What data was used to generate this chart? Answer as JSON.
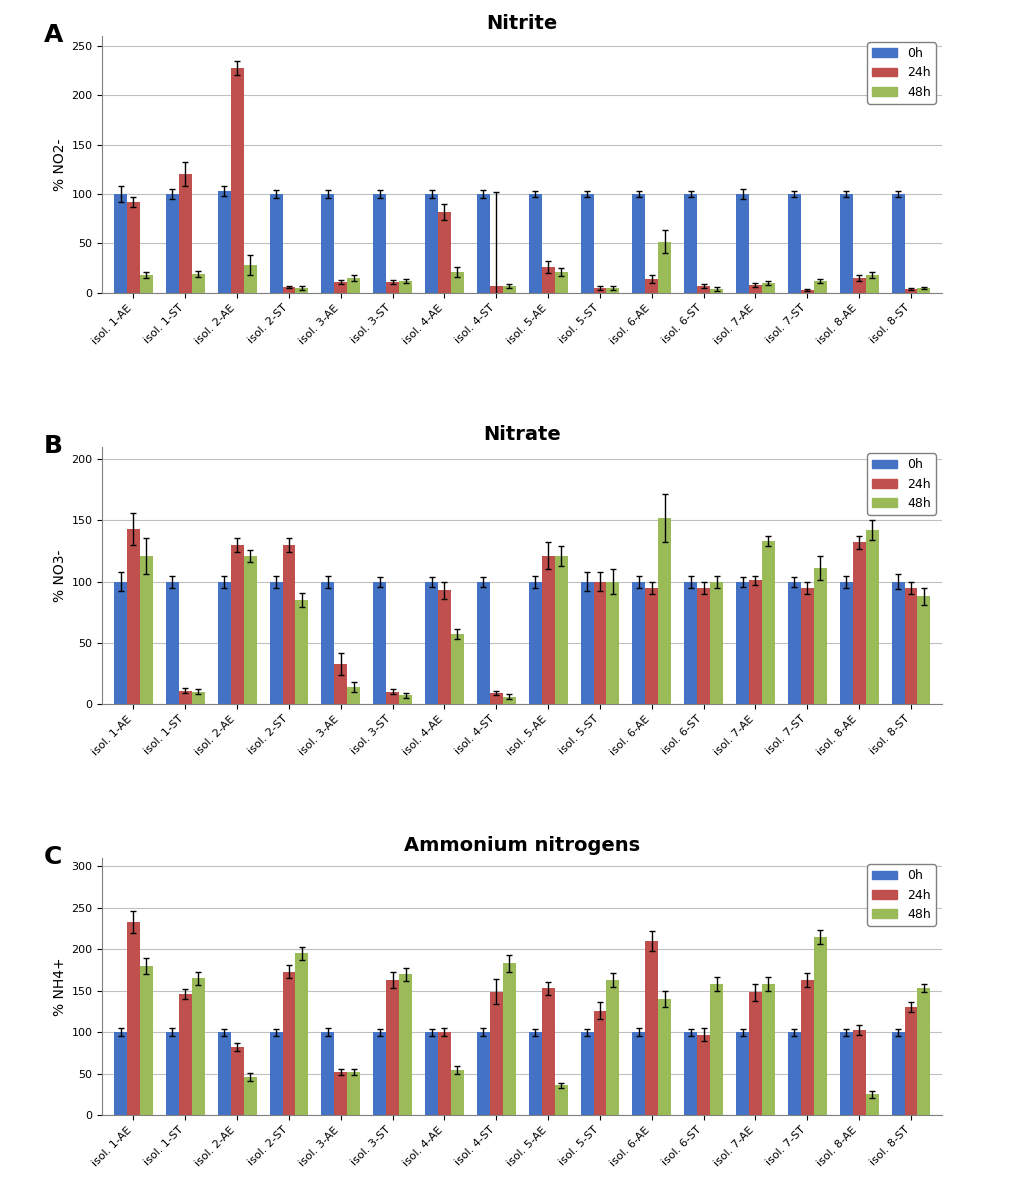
{
  "categories": [
    "isol. 1-AE",
    "isol. 1-ST",
    "isol. 2-AE",
    "isol. 2-ST",
    "isol. 3-AE",
    "isol. 3-ST",
    "isol. 4-AE",
    "isol. 4-ST",
    "isol. 5-AE",
    "isol. 5-ST",
    "isol. 6-AE",
    "isol. 6-ST",
    "isol. 7-AE",
    "isol. 7-ST",
    "isol. 8-AE",
    "isol. 8-ST"
  ],
  "colors": {
    "0h": "#4472C4",
    "24h": "#C0504D",
    "48h": "#9BBB59"
  },
  "panel_A": {
    "title": "Nitrite",
    "ylabel": "% NO2-",
    "ylim": [
      0,
      260
    ],
    "yticks": [
      0,
      50,
      100,
      150,
      200,
      250
    ],
    "values_0h": [
      100,
      100,
      103,
      100,
      100,
      100,
      100,
      100,
      100,
      100,
      100,
      100,
      100,
      100,
      100,
      100
    ],
    "values_24h": [
      92,
      120,
      228,
      6,
      11,
      11,
      82,
      7,
      26,
      5,
      14,
      7,
      8,
      3,
      15,
      4
    ],
    "values_48h": [
      18,
      19,
      28,
      5,
      15,
      12,
      21,
      7,
      21,
      5,
      52,
      4,
      10,
      12,
      18,
      5
    ],
    "err_0h": [
      8,
      5,
      5,
      4,
      4,
      4,
      4,
      4,
      3,
      3,
      3,
      3,
      5,
      3,
      3,
      3
    ],
    "err_24h": [
      5,
      12,
      7,
      1,
      2,
      2,
      8,
      95,
      6,
      2,
      4,
      2,
      2,
      1,
      3,
      1
    ],
    "err_48h": [
      3,
      3,
      10,
      2,
      3,
      2,
      5,
      2,
      4,
      2,
      12,
      2,
      2,
      2,
      3,
      1
    ]
  },
  "panel_B": {
    "title": "Nitrate",
    "ylabel": "% NO3-",
    "ylim": [
      0,
      210
    ],
    "yticks": [
      0,
      50,
      100,
      150,
      200
    ],
    "values_0h": [
      100,
      100,
      100,
      100,
      100,
      100,
      100,
      100,
      100,
      100,
      100,
      100,
      100,
      100,
      100,
      100
    ],
    "values_24h": [
      143,
      11,
      130,
      130,
      33,
      10,
      93,
      9,
      121,
      100,
      95,
      95,
      101,
      95,
      132,
      95
    ],
    "values_48h": [
      121,
      10,
      121,
      85,
      14,
      7,
      57,
      6,
      121,
      100,
      152,
      100,
      133,
      111,
      142,
      88
    ],
    "err_0h": [
      8,
      5,
      5,
      5,
      5,
      4,
      4,
      4,
      5,
      8,
      5,
      5,
      4,
      4,
      5,
      6
    ],
    "err_24h": [
      13,
      2,
      6,
      6,
      9,
      2,
      7,
      2,
      11,
      8,
      5,
      5,
      4,
      5,
      5,
      5
    ],
    "err_48h": [
      15,
      2,
      5,
      6,
      4,
      2,
      4,
      2,
      8,
      10,
      20,
      5,
      4,
      10,
      8,
      7
    ]
  },
  "panel_C": {
    "title": "Ammonium nitrogens",
    "ylabel": "% NH4+",
    "ylim": [
      0,
      310
    ],
    "yticks": [
      0,
      50,
      100,
      150,
      200,
      250,
      300
    ],
    "values_0h": [
      100,
      100,
      100,
      100,
      100,
      100,
      100,
      100,
      100,
      100,
      100,
      100,
      100,
      100,
      100,
      100
    ],
    "values_24h": [
      233,
      146,
      82,
      173,
      52,
      163,
      100,
      149,
      153,
      126,
      210,
      97,
      148,
      163,
      103,
      130
    ],
    "values_48h": [
      180,
      165,
      46,
      195,
      52,
      170,
      54,
      183,
      36,
      163,
      140,
      158,
      158,
      215,
      25,
      153
    ],
    "err_0h": [
      5,
      5,
      4,
      4,
      5,
      4,
      4,
      5,
      4,
      4,
      5,
      4,
      4,
      4,
      4,
      4
    ],
    "err_24h": [
      13,
      6,
      5,
      8,
      4,
      10,
      5,
      15,
      8,
      10,
      12,
      8,
      10,
      8,
      6,
      6
    ],
    "err_48h": [
      10,
      8,
      5,
      8,
      4,
      8,
      5,
      10,
      3,
      8,
      10,
      8,
      8,
      8,
      4,
      5
    ]
  },
  "bar_width": 0.25,
  "panel_label_fontsize": 18,
  "title_fontsize": 14,
  "tick_fontsize": 8,
  "ylabel_fontsize": 10,
  "legend_fontsize": 9,
  "background_color": "#FFFFFF",
  "grid_color": "#C0C0C0"
}
